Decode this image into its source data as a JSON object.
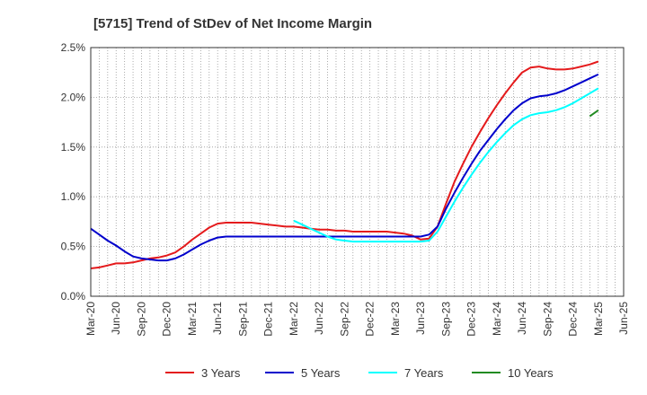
{
  "chart_data": {
    "type": "line",
    "title": "[5715]  Trend of StDev of Net Income Margin",
    "xlabel": "",
    "ylabel": "",
    "x": [
      "Mar-20",
      "Apr-20",
      "May-20",
      "Jun-20",
      "Jul-20",
      "Aug-20",
      "Sep-20",
      "Oct-20",
      "Nov-20",
      "Dec-20",
      "Jan-21",
      "Feb-21",
      "Mar-21",
      "Apr-21",
      "May-21",
      "Jun-21",
      "Jul-21",
      "Aug-21",
      "Sep-21",
      "Oct-21",
      "Nov-21",
      "Dec-21",
      "Jan-22",
      "Feb-22",
      "Mar-22",
      "Apr-22",
      "May-22",
      "Jun-22",
      "Jul-22",
      "Aug-22",
      "Sep-22",
      "Oct-22",
      "Nov-22",
      "Dec-22",
      "Jan-23",
      "Feb-23",
      "Mar-23",
      "Apr-23",
      "May-23",
      "Jun-23",
      "Jul-23",
      "Aug-23",
      "Sep-23",
      "Oct-23",
      "Nov-23",
      "Dec-23",
      "Jan-24",
      "Feb-24",
      "Mar-24",
      "Apr-24",
      "May-24",
      "Jun-24",
      "Jul-24",
      "Aug-24",
      "Sep-24",
      "Oct-24",
      "Nov-24",
      "Dec-24",
      "Jan-25",
      "Feb-25",
      "Mar-25",
      "Apr-25",
      "May-25",
      "Jun-25"
    ],
    "x_ticks": [
      "Mar-20",
      "Jun-20",
      "Sep-20",
      "Dec-20",
      "Mar-21",
      "Jun-21",
      "Sep-21",
      "Dec-21",
      "Mar-22",
      "Jun-22",
      "Sep-22",
      "Dec-22",
      "Mar-23",
      "Jun-23",
      "Sep-23",
      "Dec-23",
      "Mar-24",
      "Jun-24",
      "Sep-24",
      "Dec-24",
      "Mar-25",
      "Jun-25"
    ],
    "y_ticks": [
      "0.0%",
      "0.5%",
      "1.0%",
      "1.5%",
      "2.0%",
      "2.5%"
    ],
    "ylim": [
      0,
      2.5
    ],
    "grid": true,
    "legend_position": "bottom",
    "series": [
      {
        "name": "3 Years",
        "color": "#e41a1c",
        "values": [
          0.28,
          0.29,
          0.31,
          0.33,
          0.33,
          0.34,
          0.36,
          0.38,
          0.39,
          0.41,
          0.44,
          0.5,
          0.57,
          0.63,
          0.69,
          0.73,
          0.74,
          0.74,
          0.74,
          0.74,
          0.73,
          0.72,
          0.71,
          0.7,
          0.7,
          0.69,
          0.68,
          0.67,
          0.67,
          0.66,
          0.66,
          0.65,
          0.65,
          0.65,
          0.65,
          0.65,
          0.64,
          0.63,
          0.61,
          0.57,
          0.58,
          0.7,
          0.93,
          1.15,
          1.33,
          1.5,
          1.65,
          1.79,
          1.92,
          2.04,
          2.15,
          2.25,
          2.3,
          2.31,
          2.29,
          2.28,
          2.28,
          2.29,
          2.31,
          2.33,
          2.36,
          null,
          null,
          null
        ]
      },
      {
        "name": "5 Years",
        "color": "#0000cc",
        "values": [
          0.68,
          0.62,
          0.56,
          0.51,
          0.45,
          0.4,
          0.38,
          0.37,
          0.36,
          0.36,
          0.38,
          0.42,
          0.47,
          0.52,
          0.56,
          0.59,
          0.6,
          0.6,
          0.6,
          0.6,
          0.6,
          0.6,
          0.6,
          0.6,
          0.6,
          0.6,
          0.6,
          0.6,
          0.6,
          0.6,
          0.6,
          0.6,
          0.6,
          0.6,
          0.6,
          0.6,
          0.6,
          0.6,
          0.6,
          0.6,
          0.62,
          0.7,
          0.88,
          1.04,
          1.19,
          1.33,
          1.46,
          1.57,
          1.68,
          1.78,
          1.87,
          1.94,
          1.99,
          2.01,
          2.02,
          2.04,
          2.07,
          2.11,
          2.15,
          2.19,
          2.23,
          null,
          null,
          null
        ]
      },
      {
        "name": "7 Years",
        "color": "#00ffff",
        "values": [
          null,
          null,
          null,
          null,
          null,
          null,
          null,
          null,
          null,
          null,
          null,
          null,
          null,
          null,
          null,
          null,
          null,
          null,
          null,
          null,
          null,
          null,
          null,
          null,
          0.76,
          0.72,
          0.68,
          0.64,
          0.6,
          0.57,
          0.56,
          0.55,
          0.55,
          0.55,
          0.55,
          0.55,
          0.55,
          0.55,
          0.55,
          0.55,
          0.56,
          0.65,
          0.8,
          0.95,
          1.09,
          1.22,
          1.34,
          1.45,
          1.55,
          1.64,
          1.72,
          1.78,
          1.82,
          1.84,
          1.85,
          1.87,
          1.9,
          1.94,
          1.99,
          2.04,
          2.09,
          null,
          null,
          null
        ]
      },
      {
        "name": "10 Years",
        "color": "#228b22",
        "values": [
          null,
          null,
          null,
          null,
          null,
          null,
          null,
          null,
          null,
          null,
          null,
          null,
          null,
          null,
          null,
          null,
          null,
          null,
          null,
          null,
          null,
          null,
          null,
          null,
          null,
          null,
          null,
          null,
          null,
          null,
          null,
          null,
          null,
          null,
          null,
          null,
          null,
          null,
          null,
          null,
          null,
          null,
          null,
          null,
          null,
          null,
          null,
          null,
          null,
          null,
          null,
          null,
          null,
          null,
          null,
          null,
          null,
          null,
          null,
          1.81,
          1.87,
          null,
          null,
          null
        ]
      }
    ]
  }
}
